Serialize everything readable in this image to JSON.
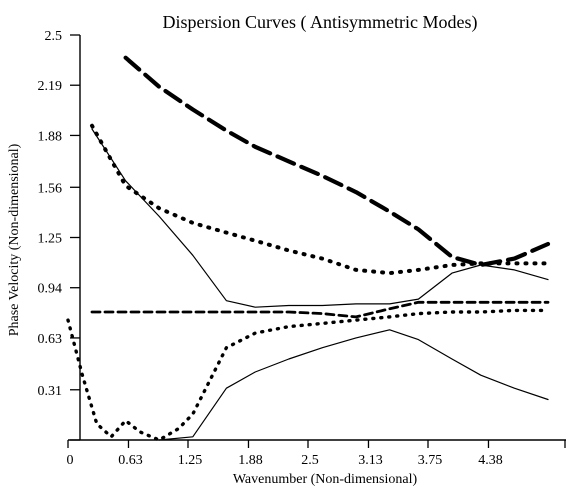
{
  "chart_data": {
    "type": "line",
    "title": "Dispersion Curves ( Antisymmetric Modes)",
    "xlabel": "Wavenumber (Non-dimensional)",
    "ylabel": "Phase Velocity (Non-dimensional)",
    "xlim": [
      0,
      5
    ],
    "ylim": [
      0,
      2.5
    ],
    "grid": false,
    "legend": "none",
    "xticks": [
      0,
      0.63,
      1.25,
      1.88,
      2.5,
      3.13,
      3.75,
      4.38
    ],
    "yticks": [
      0.31,
      0.63,
      0.94,
      1.25,
      1.56,
      1.88,
      2.19,
      2.5
    ],
    "series": [
      {
        "style": "solid-thin",
        "x": [
          0.25,
          0.6,
          0.95,
          1.3,
          1.65,
          1.95,
          2.3,
          2.65,
          3.0,
          3.35,
          3.65,
          4.0,
          4.3,
          4.65,
          5.0
        ],
        "y": [
          1.92,
          1.6,
          1.38,
          1.14,
          0.86,
          0.82,
          0.83,
          0.83,
          0.84,
          0.84,
          0.87,
          1.03,
          1.08,
          1.05,
          0.99
        ]
      },
      {
        "style": "solid-thin",
        "x": [
          0.95,
          1.3,
          1.65,
          1.95,
          2.3,
          2.65,
          3.0,
          3.35,
          3.65,
          4.0,
          4.3,
          4.65,
          5.0
        ],
        "y": [
          0.0,
          0.02,
          0.32,
          0.42,
          0.5,
          0.57,
          0.63,
          0.68,
          0.62,
          0.5,
          0.4,
          0.32,
          0.25
        ]
      },
      {
        "style": "long-dash",
        "x": [
          0.6,
          0.95,
          1.3,
          1.65,
          1.95,
          2.3,
          2.65,
          3.0,
          3.35,
          3.65,
          4.0,
          4.3,
          4.65,
          5.0
        ],
        "y": [
          2.36,
          2.18,
          2.04,
          1.91,
          1.81,
          1.72,
          1.63,
          1.53,
          1.41,
          1.3,
          1.13,
          1.08,
          1.12,
          1.21
        ]
      },
      {
        "style": "dotted-heavy",
        "x": [
          0.25,
          0.6,
          0.95,
          1.3,
          1.65,
          1.95,
          2.3,
          2.65,
          3.0,
          3.35,
          3.65,
          4.0,
          4.3,
          4.65,
          5.0
        ],
        "y": [
          1.94,
          1.57,
          1.43,
          1.34,
          1.28,
          1.23,
          1.17,
          1.12,
          1.05,
          1.03,
          1.05,
          1.08,
          1.09,
          1.09,
          1.09
        ]
      },
      {
        "style": "short-dash",
        "x": [
          0.25,
          0.6,
          0.95,
          1.3,
          1.65,
          1.95,
          2.3,
          2.65,
          3.0,
          3.35,
          3.65,
          4.0,
          4.3,
          4.65,
          5.0
        ],
        "y": [
          0.79,
          0.79,
          0.79,
          0.79,
          0.79,
          0.79,
          0.79,
          0.78,
          0.76,
          0.81,
          0.85,
          0.85,
          0.85,
          0.85,
          0.85
        ]
      },
      {
        "style": "dotted-light",
        "x": [
          0.0,
          0.15,
          0.3,
          0.45,
          0.6,
          0.75,
          0.95,
          1.15,
          1.3,
          1.65,
          1.95,
          2.3,
          2.65,
          3.0,
          3.35,
          3.65,
          4.0,
          4.3,
          4.65,
          5.0
        ],
        "y": [
          0.74,
          0.4,
          0.1,
          0.02,
          0.12,
          0.05,
          0.0,
          0.07,
          0.16,
          0.57,
          0.66,
          0.7,
          0.72,
          0.74,
          0.76,
          0.78,
          0.79,
          0.79,
          0.8,
          0.8
        ]
      }
    ]
  }
}
